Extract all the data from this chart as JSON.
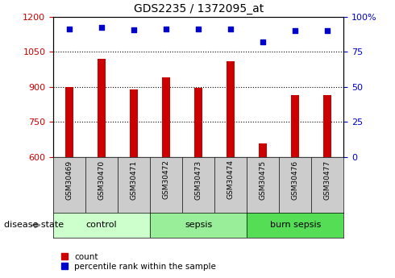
{
  "title": "GDS2235 / 1372095_at",
  "samples": [
    "GSM30469",
    "GSM30470",
    "GSM30471",
    "GSM30472",
    "GSM30473",
    "GSM30474",
    "GSM30475",
    "GSM30476",
    "GSM30477"
  ],
  "counts": [
    900,
    1020,
    890,
    940,
    895,
    1010,
    660,
    865,
    865
  ],
  "percentiles": [
    91.5,
    92.5,
    90.5,
    91.5,
    91.5,
    91.5,
    82,
    90,
    90
  ],
  "ylim_left": [
    600,
    1200
  ],
  "ylim_right": [
    0,
    100
  ],
  "yticks_left": [
    600,
    750,
    900,
    1050,
    1200
  ],
  "yticks_right": [
    0,
    25,
    50,
    75,
    100
  ],
  "bar_color": "#cc0000",
  "dot_color": "#0000cc",
  "groups": [
    {
      "label": "control",
      "indices": [
        0,
        1,
        2
      ],
      "color": "#ccffcc"
    },
    {
      "label": "sepsis",
      "indices": [
        3,
        4,
        5
      ],
      "color": "#99ee99"
    },
    {
      "label": "burn sepsis",
      "indices": [
        6,
        7,
        8
      ],
      "color": "#55dd55"
    }
  ],
  "ticklabel_bg": "#cccccc",
  "disease_state_label": "disease state",
  "left_axis_color": "#cc0000",
  "right_axis_color": "#0000cc",
  "legend_count_label": "count",
  "legend_pct_label": "percentile rank within the sample",
  "bar_width": 0.25
}
